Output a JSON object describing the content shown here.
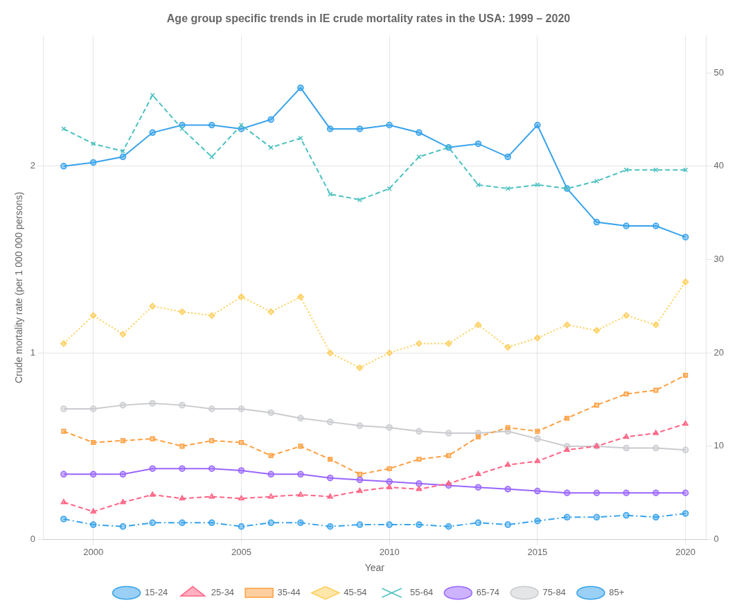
{
  "chart_data": {
    "type": "line",
    "title": "Age group specific trends in IE crude mortality rates in the USA: 1999 – 2020",
    "x_label": "Year",
    "y_label": "Crude mortality rate (per 1 000 000 persons)",
    "x": [
      1999,
      2000,
      2001,
      2002,
      2003,
      2004,
      2005,
      2006,
      2007,
      2008,
      2009,
      2010,
      2011,
      2012,
      2013,
      2014,
      2015,
      2016,
      2017,
      2018,
      2019,
      2020
    ],
    "series": [
      {
        "name": "15-24",
        "marker": "circle",
        "line_style": "dashdot",
        "values": [
          0.11,
          0.08,
          0.07,
          0.09,
          0.09,
          0.09,
          0.07,
          0.09,
          0.09,
          0.07,
          0.08,
          0.08,
          0.08,
          0.07,
          0.09,
          0.08,
          0.1,
          0.12,
          0.12,
          0.13,
          0.12,
          0.14
        ]
      },
      {
        "name": "25-34",
        "marker": "triangle",
        "line_style": "dashed",
        "values": [
          0.2,
          0.15,
          0.2,
          0.24,
          0.22,
          0.23,
          0.22,
          0.23,
          0.24,
          0.23,
          0.26,
          0.28,
          0.27,
          0.3,
          0.35,
          0.4,
          0.42,
          0.48,
          0.5,
          0.55,
          0.57,
          0.62
        ]
      },
      {
        "name": "35-44",
        "marker": "square",
        "line_style": "dashed",
        "values": [
          0.58,
          0.52,
          0.53,
          0.54,
          0.5,
          0.53,
          0.52,
          0.45,
          0.5,
          0.43,
          0.35,
          0.38,
          0.43,
          0.45,
          0.55,
          0.6,
          0.58,
          0.65,
          0.72,
          0.78,
          0.8,
          0.88
        ]
      },
      {
        "name": "45-54",
        "marker": "diamond",
        "line_style": "dotted",
        "values": [
          1.05,
          1.2,
          1.1,
          1.25,
          1.22,
          1.2,
          1.3,
          1.22,
          1.3,
          1.0,
          0.92,
          1.0,
          1.05,
          1.05,
          1.15,
          1.03,
          1.08,
          1.15,
          1.12,
          1.2,
          1.15,
          1.38
        ]
      },
      {
        "name": "55-64",
        "marker": "cross",
        "line_style": "dashed",
        "values": [
          2.2,
          2.12,
          2.08,
          2.38,
          2.2,
          2.05,
          2.22,
          2.1,
          2.15,
          1.85,
          1.82,
          1.88,
          2.05,
          2.1,
          1.9,
          1.88,
          1.9,
          1.88,
          1.92,
          1.98,
          1.98,
          1.98
        ]
      },
      {
        "name": "65-74",
        "marker": "circle",
        "line_style": "solid",
        "values": [
          0.35,
          0.35,
          0.35,
          0.38,
          0.38,
          0.38,
          0.37,
          0.35,
          0.35,
          0.33,
          0.32,
          0.31,
          0.3,
          0.29,
          0.28,
          0.27,
          0.26,
          0.25,
          0.25,
          0.25,
          0.25,
          0.25
        ]
      },
      {
        "name": "75-84",
        "marker": "circle",
        "line_style": "solid",
        "values": [
          0.7,
          0.7,
          0.72,
          0.73,
          0.72,
          0.7,
          0.7,
          0.68,
          0.65,
          0.63,
          0.61,
          0.6,
          0.58,
          0.57,
          0.57,
          0.58,
          0.54,
          0.5,
          0.5,
          0.49,
          0.49,
          0.48
        ]
      },
      {
        "name": "85+",
        "marker": "circle",
        "line_style": "solid",
        "values": [
          2.0,
          2.02,
          2.05,
          2.18,
          2.22,
          2.22,
          2.2,
          2.25,
          2.42,
          2.2,
          2.2,
          2.22,
          2.18,
          2.1,
          2.12,
          2.05,
          2.22,
          1.88,
          1.7,
          1.68,
          1.68,
          1.62
        ]
      }
    ],
    "xlim": [
      1998.3,
      2020.7
    ],
    "xticks": [
      2000,
      2005,
      2010,
      2015,
      2020
    ],
    "ylim": [
      0,
      2.7
    ],
    "yticks": [
      0,
      1,
      2
    ],
    "y2lim": [
      0,
      54
    ],
    "y2ticks": [
      0,
      10,
      20,
      30,
      40,
      50
    ],
    "grid": true,
    "legend": "bottom"
  }
}
